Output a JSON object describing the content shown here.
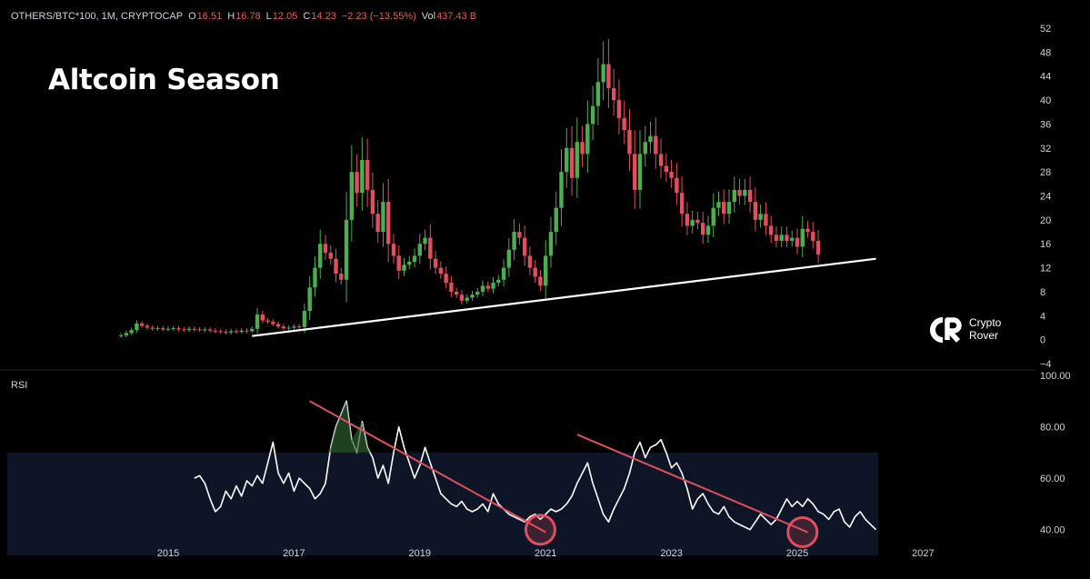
{
  "header": {
    "symbol": "OTHERS/BTC*100, 1M, CRYPTOCAP",
    "open_label": "O",
    "open": "16.51",
    "high_label": "H",
    "high": "16.78",
    "low_label": "L",
    "low": "12.05",
    "close_label": "C",
    "close": "14.23",
    "change": "−2.23 (−13.55%)",
    "volume_label": "Vol",
    "volume": "437.43 B"
  },
  "title": "Altcoin Season",
  "rsi_label": "RSI",
  "brand": {
    "line1": "Crypto",
    "line2": "Rover"
  },
  "colors": {
    "up": "#4cae4f",
    "down": "#e04f5f",
    "trendline": "#ffffff",
    "rsi_line": "#ffffff",
    "rsi_trend": "#e04f5f",
    "rsi_band": "#0d1526",
    "circle": "#e04f5f"
  },
  "chart_data": [
    {
      "type": "candlestick",
      "title": "",
      "ylim": [
        -4,
        52
      ],
      "y_ticks": [
        "52",
        "48",
        "44",
        "40",
        "36",
        "32",
        "28",
        "24",
        "20",
        "16",
        "12",
        "8",
        "4",
        "0",
        "−4"
      ],
      "x_ticks": [
        "2015",
        "2017",
        "2019",
        "2021",
        "2023",
        "2025",
        "2027"
      ],
      "closes": [
        0.7,
        1.1,
        1.6,
        2.7,
        2.3,
        2.0,
        1.8,
        1.9,
        1.7,
        1.8,
        1.9,
        1.7,
        1.6,
        1.8,
        1.7,
        1.6,
        1.7,
        1.5,
        1.4,
        1.3,
        1.2,
        1.4,
        1.3,
        1.5,
        1.4,
        1.8,
        4.2,
        3.2,
        3.0,
        2.6,
        2.2,
        1.9,
        2.0,
        2.2,
        2.1,
        4.8,
        8.7,
        12.0,
        16.0,
        14.5,
        13.5,
        11.0,
        10.0,
        20.0,
        28.0,
        24.5,
        30.0,
        25.0,
        21.0,
        18.0,
        23.0,
        16.0,
        14.0,
        11.5,
        12.5,
        13.0,
        14.0,
        16.0,
        17.0,
        13.5,
        12.0,
        11.0,
        9.5,
        8.0,
        7.5,
        6.5,
        7.0,
        7.5,
        8.0,
        9.0,
        8.5,
        9.5,
        10.0,
        12.0,
        15.0,
        18.0,
        17.0,
        14.0,
        12.0,
        10.5,
        9.0,
        14.0,
        18.0,
        22.0,
        28.0,
        32.0,
        27.0,
        33.0,
        31.0,
        36.0,
        39.0,
        43.0,
        46.0,
        42.0,
        40.0,
        37.0,
        35.0,
        31.0,
        25.0,
        31.0,
        33.0,
        34.0,
        31.0,
        29.0,
        28.0,
        27.0,
        24.5,
        21.0,
        19.0,
        20.0,
        19.5,
        17.5,
        19.0,
        22.0,
        23.0,
        21.0,
        23.0,
        25.0,
        24.0,
        25.0,
        23.0,
        20.0,
        21.0,
        19.0,
        17.5,
        16.5,
        17.5,
        16.5,
        17.0,
        15.5,
        18.5,
        18.0,
        16.5,
        14.2
      ],
      "trendline": {
        "from": {
          "x": "2016-05",
          "y": 0.6
        },
        "to": {
          "x": "2026-04",
          "y": 13.5
        }
      }
    },
    {
      "type": "line",
      "title": "",
      "ylim": [
        30,
        100
      ],
      "y_ticks": [
        "100.00",
        "80.00",
        "60.00",
        "40.00"
      ],
      "series": [
        {
          "values": [
            60,
            61,
            58,
            52,
            47,
            49,
            55,
            52,
            57,
            53,
            59,
            57,
            61,
            58,
            66,
            74,
            62,
            58,
            62,
            55,
            60,
            58,
            56,
            52,
            54,
            58,
            72,
            80,
            85,
            90,
            75,
            70,
            82,
            72,
            68,
            60,
            65,
            58,
            70,
            80,
            72,
            66,
            60,
            65,
            72,
            66,
            60,
            54,
            52,
            50,
            49,
            51,
            48,
            47,
            48,
            50,
            47,
            54,
            50,
            48,
            46,
            45,
            44,
            43,
            45,
            46,
            44,
            46,
            48,
            47,
            48,
            50,
            53,
            58,
            62,
            66,
            58,
            52,
            46,
            43,
            48,
            52,
            56,
            62,
            70,
            74,
            68,
            72,
            73,
            75,
            70,
            64,
            66,
            62,
            56,
            48,
            52,
            54,
            50,
            47,
            46,
            49,
            45,
            43,
            42,
            41,
            40,
            43,
            46,
            44,
            42,
            44,
            48,
            52,
            49,
            51,
            49,
            52,
            50,
            47,
            46,
            44,
            47,
            48,
            43,
            41,
            45,
            47,
            44,
            42,
            40
          ]
        }
      ],
      "trendlines": [
        {
          "from": {
            "x": "2017-04",
            "y": 90
          },
          "to": {
            "x": "2021-01",
            "y": 39
          }
        },
        {
          "from": {
            "x": "2021-07",
            "y": 77
          },
          "to": {
            "x": "2025-03",
            "y": 39
          }
        }
      ],
      "overbought_band": [
        30,
        70
      ],
      "highlighted_points": [
        {
          "x": "2020-12",
          "y": 40
        },
        {
          "x": "2025-02",
          "y": 39
        }
      ]
    }
  ]
}
